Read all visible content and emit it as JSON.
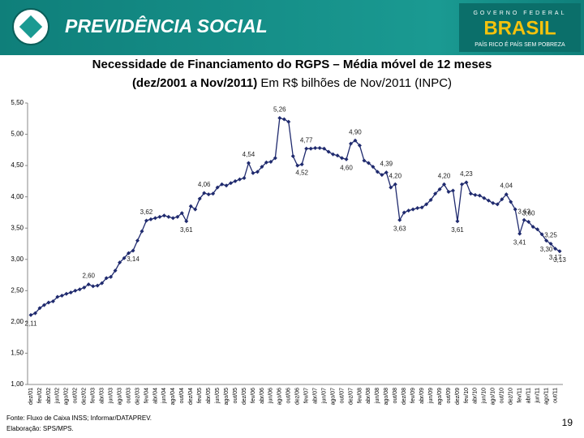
{
  "header": {
    "title": "PREVIDÊNCIA SOCIAL",
    "gov": "GOVERNO FEDERAL",
    "brand": "BRASIL",
    "slogan": "PAÍS RICO É PAÍS SEM POBREZA"
  },
  "chart_data": {
    "type": "line",
    "title": "Necessidade de Financiamento do RGPS – Média móvel de 12 meses",
    "subtitle": [
      "(dez/2001 a Nov/2011)",
      "Em R$ bilhões de Nov/2011 (INPC)"
    ],
    "categories": [
      "dez/01",
      null,
      "fev/02",
      null,
      "abr/02",
      null,
      "jun/02",
      null,
      "ago/02",
      null,
      "out/02",
      null,
      "dez/02",
      null,
      "fev/03",
      null,
      "abr/03",
      null,
      "jun/03",
      null,
      "ago/03",
      null,
      "out/03",
      null,
      "dez/03",
      null,
      "fev/04",
      null,
      "abr/04",
      null,
      "jun/04",
      null,
      "ago/04",
      null,
      "out/04",
      null,
      "dez/04",
      null,
      "fev/05",
      null,
      "abr/05",
      null,
      "jun/05",
      null,
      "ago/05",
      null,
      "out/05",
      null,
      "dez/05",
      null,
      "fev/06",
      null,
      "abr/06",
      null,
      "jun/06",
      null,
      "ago/06",
      null,
      "out/06",
      null,
      "dez/06",
      null,
      "fev/07",
      null,
      "abr/07",
      null,
      "jun/07",
      null,
      "ago/07",
      null,
      "out/07",
      null,
      "dez/07",
      null,
      "fev/08",
      null,
      "abr/08",
      null,
      "jun/08",
      null,
      "ago/08",
      null,
      "out/08",
      null,
      "dez/08",
      null,
      "fev/09",
      null,
      "abr/09",
      null,
      "jun/09",
      null,
      "ago/09",
      null,
      "out/09",
      null,
      "dez/09",
      null,
      "fev/10",
      null,
      "abr/10",
      null,
      "jun/10",
      null,
      "ago/10",
      null,
      "out/10",
      null,
      "dez/10",
      null,
      "fev/11",
      null,
      "abr/11",
      null,
      "jun/11",
      null,
      "ago/11",
      null,
      "out/11",
      null
    ],
    "series": [
      {
        "color": "#1f2a6e",
        "values": [
          2.11,
          2.14,
          2.22,
          2.27,
          2.31,
          2.33,
          2.4,
          2.42,
          2.45,
          2.47,
          2.5,
          2.52,
          2.55,
          2.6,
          2.57,
          2.58,
          2.62,
          2.7,
          2.72,
          2.82,
          2.95,
          3.02,
          3.1,
          3.14,
          3.3,
          3.45,
          3.62,
          3.64,
          3.66,
          3.68,
          3.7,
          3.68,
          3.66,
          3.68,
          3.74,
          3.61,
          3.85,
          3.8,
          3.97,
          4.06,
          4.04,
          4.05,
          4.15,
          4.2,
          4.18,
          4.22,
          4.25,
          4.28,
          4.3,
          4.54,
          4.38,
          4.4,
          4.48,
          4.55,
          4.56,
          4.62,
          5.26,
          5.24,
          5.2,
          4.65,
          4.5,
          4.52,
          4.77,
          4.77,
          4.78,
          4.78,
          4.77,
          4.72,
          4.68,
          4.66,
          4.62,
          4.6,
          4.85,
          4.9,
          4.82,
          4.58,
          4.54,
          4.48,
          4.4,
          4.35,
          4.39,
          4.15,
          4.2,
          3.63,
          3.75,
          3.78,
          3.8,
          3.82,
          3.83,
          3.88,
          3.95,
          4.05,
          4.12,
          4.2,
          4.08,
          4.1,
          3.61,
          4.2,
          4.23,
          4.05,
          4.03,
          4.02,
          3.98,
          3.94,
          3.9,
          3.88,
          3.96,
          4.04,
          3.92,
          3.8,
          3.41,
          3.63,
          3.6,
          3.52,
          3.48,
          3.4,
          3.3,
          3.25,
          3.17,
          3.13
        ],
        "value_labels": [
          "2,11",
          null,
          null,
          null,
          null,
          null,
          null,
          null,
          null,
          null,
          null,
          null,
          null,
          "2,60",
          null,
          null,
          null,
          null,
          null,
          null,
          null,
          null,
          null,
          "3,14",
          null,
          null,
          "3,62",
          null,
          null,
          null,
          null,
          null,
          null,
          null,
          null,
          "3,61",
          null,
          null,
          null,
          "4,06",
          null,
          null,
          null,
          null,
          null,
          null,
          null,
          null,
          null,
          "4,54",
          null,
          null,
          null,
          null,
          null,
          null,
          "5,26",
          null,
          null,
          null,
          null,
          "4,52",
          "4,77",
          null,
          null,
          null,
          null,
          null,
          null,
          null,
          null,
          "4,60",
          null,
          "4,90",
          null,
          null,
          null,
          null,
          null,
          null,
          "4,39",
          null,
          "4,20",
          "3,63",
          null,
          null,
          null,
          null,
          null,
          null,
          null,
          null,
          null,
          "4,20",
          null,
          null,
          "3,61",
          null,
          "4,23",
          null,
          null,
          null,
          null,
          null,
          null,
          null,
          null,
          "4,04",
          null,
          null,
          "3,41",
          "3,63",
          "3,60",
          null,
          null,
          null,
          "3,30",
          "3,25",
          "3,17",
          "3,13"
        ]
      }
    ],
    "ylim": [
      1,
      5.5
    ],
    "yticks": [
      {
        "value": 1,
        "label": "1,00"
      },
      {
        "value": 1.5,
        "label": "1,50"
      },
      {
        "value": 2,
        "label": "2,00"
      },
      {
        "value": 2.5,
        "label": "2,50"
      },
      {
        "value": 3,
        "label": "3,00"
      },
      {
        "value": 3.5,
        "label": "3,50"
      },
      {
        "value": 4,
        "label": "4,00"
      },
      {
        "value": 4.5,
        "label": "4,50"
      },
      {
        "value": 5,
        "label": "5,00"
      },
      {
        "value": 5.5,
        "label": "5,50"
      }
    ],
    "grid": false
  },
  "footer": {
    "source": "Fonte: Fluxo de Caixa INSS; Informar/DATAPREV.",
    "credit": "Elaboração: SPS/MPS.",
    "page": "19"
  }
}
